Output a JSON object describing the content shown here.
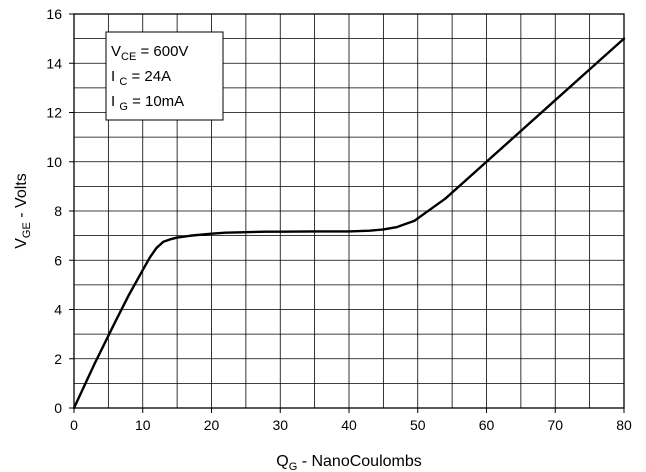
{
  "chart_data": {
    "type": "line",
    "xlabel": {
      "main": "Q",
      "sub": "G",
      "rest": " - NanoCoulombs"
    },
    "ylabel": {
      "main": "V",
      "sub": "GE",
      "rest": " - Volts"
    },
    "xlim": [
      0,
      80
    ],
    "ylim": [
      0,
      16
    ],
    "x_ticks": [
      "0",
      "10",
      "20",
      "30",
      "40",
      "50",
      "60",
      "70",
      "80"
    ],
    "y_ticks": [
      "0",
      "2",
      "4",
      "6",
      "8",
      "10",
      "12",
      "14",
      "16"
    ],
    "grid": {
      "x_step": 5,
      "y_step": 1
    },
    "legend_box": {
      "position": "top-left",
      "lines": [
        {
          "main": "V",
          "sub": "CE",
          "rest": " = 600V"
        },
        {
          "main": "I ",
          "sub": "C",
          "rest": " = 24A"
        },
        {
          "main": "I ",
          "sub": "G",
          "rest": " = 10mA"
        }
      ]
    },
    "series": [
      {
        "color": "#000000",
        "points": [
          [
            0,
            0
          ],
          [
            3,
            1.8
          ],
          [
            6,
            3.5
          ],
          [
            8,
            4.6
          ],
          [
            10,
            5.6
          ],
          [
            11,
            6.1
          ],
          [
            12,
            6.5
          ],
          [
            13,
            6.75
          ],
          [
            14,
            6.85
          ],
          [
            15,
            6.92
          ],
          [
            17,
            7.0
          ],
          [
            20,
            7.08
          ],
          [
            22,
            7.12
          ],
          [
            25,
            7.14
          ],
          [
            28,
            7.16
          ],
          [
            30,
            7.16
          ],
          [
            35,
            7.17
          ],
          [
            40,
            7.17
          ],
          [
            43,
            7.2
          ],
          [
            45,
            7.25
          ],
          [
            47,
            7.35
          ],
          [
            48,
            7.45
          ],
          [
            49.5,
            7.6
          ],
          [
            51,
            7.9
          ],
          [
            54,
            8.5
          ],
          [
            57,
            9.25
          ],
          [
            60,
            10.0
          ],
          [
            65,
            11.25
          ],
          [
            70,
            12.5
          ],
          [
            75,
            13.75
          ],
          [
            80,
            15.0
          ]
        ]
      }
    ]
  }
}
